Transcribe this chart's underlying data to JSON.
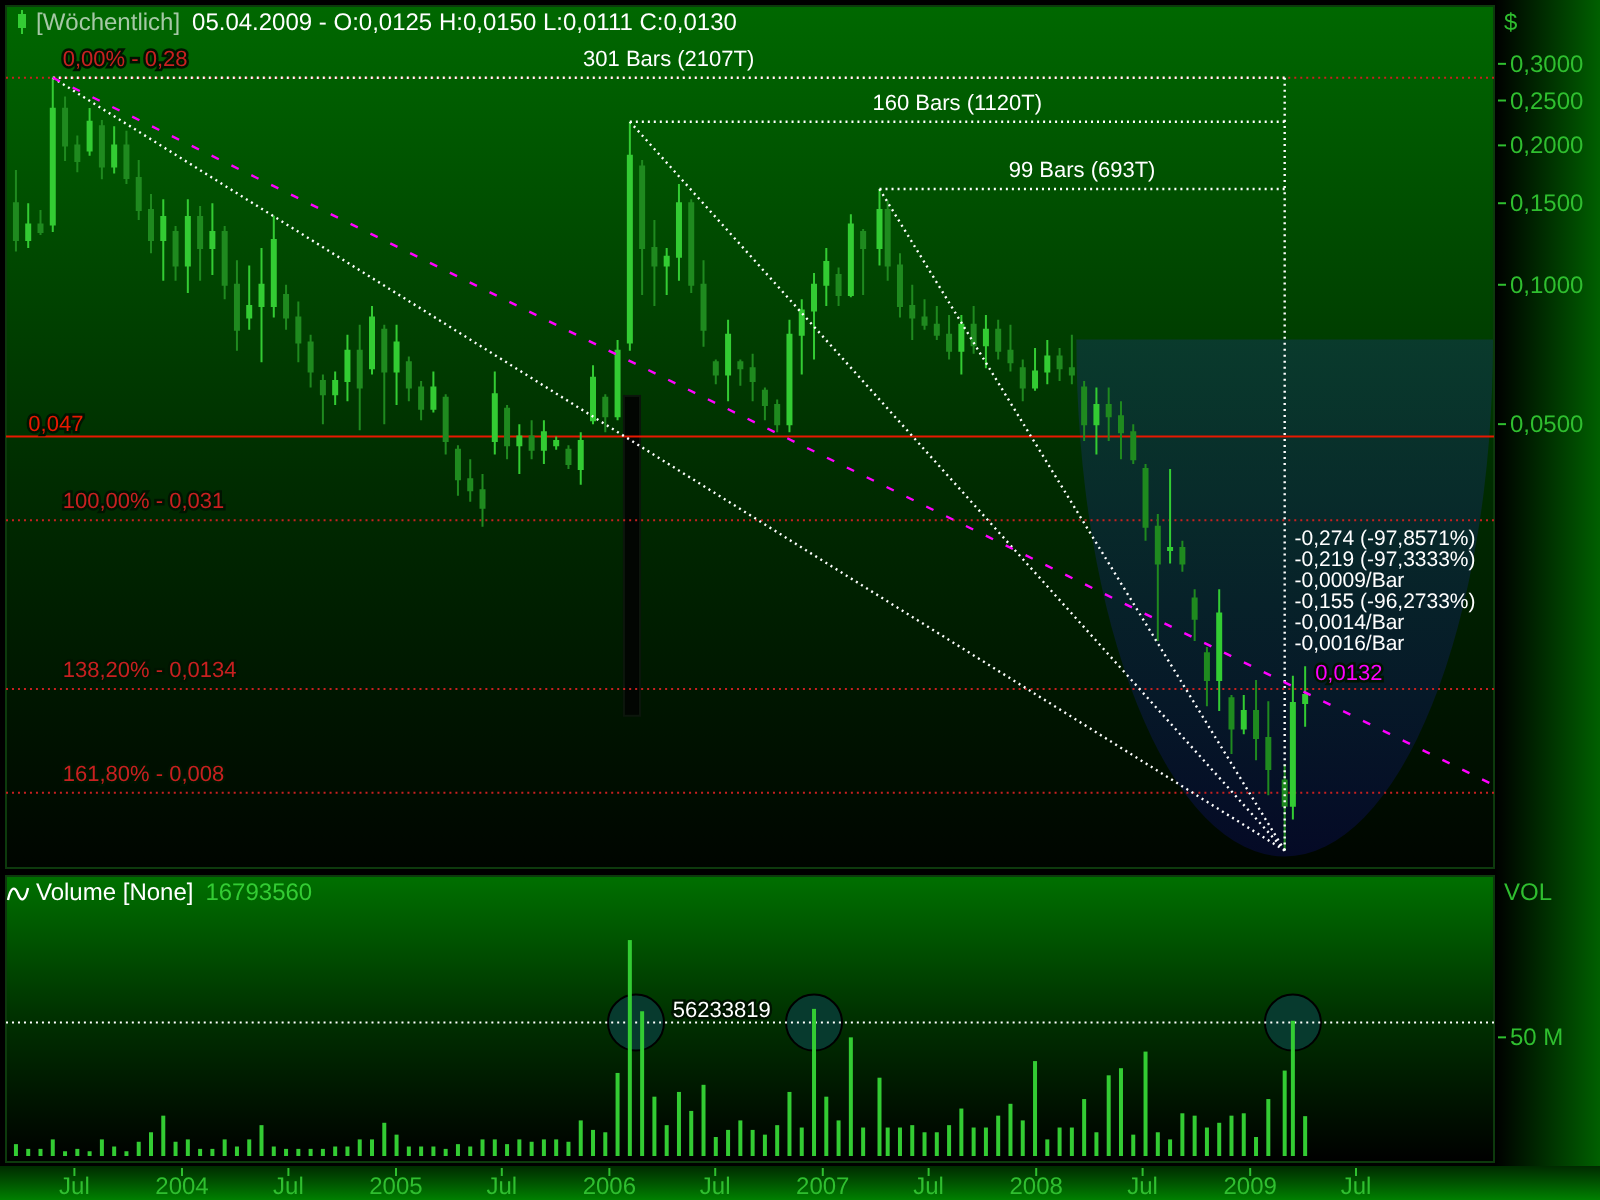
{
  "chart_data": [
    {
      "type": "candlestick",
      "title": "[Wöchentlich]",
      "subtitle": "05.04.2009 - O:0,0125 H:0,0150 L:0,0111 C:0,0130",
      "ylabel": "$",
      "x": [
        "2003-03-23",
        "2003-04-13",
        "2003-05-04",
        "2003-05-25",
        "2003-06-15",
        "2003-07-06",
        "2003-07-27",
        "2003-08-17",
        "2003-09-07",
        "2003-09-28",
        "2003-10-19",
        "2003-11-09",
        "2003-11-30",
        "2003-12-21",
        "2004-01-11",
        "2004-02-01",
        "2004-02-22",
        "2004-03-14",
        "2004-04-04",
        "2004-04-25",
        "2004-05-16",
        "2004-06-06",
        "2004-06-27",
        "2004-07-18",
        "2004-08-08",
        "2004-08-29",
        "2004-09-19",
        "2004-10-10",
        "2004-10-31",
        "2004-11-21",
        "2004-12-12",
        "2005-01-02",
        "2005-01-23",
        "2005-02-13",
        "2005-03-06",
        "2005-03-27",
        "2005-04-17",
        "2005-05-08",
        "2005-05-29",
        "2005-06-19",
        "2005-07-10",
        "2005-07-31",
        "2005-08-21",
        "2005-09-11",
        "2005-10-02",
        "2005-10-23",
        "2005-11-13",
        "2005-12-04",
        "2005-12-25",
        "2006-01-15",
        "2006-02-05",
        "2006-02-26",
        "2006-03-19",
        "2006-04-09",
        "2006-04-30",
        "2006-05-21",
        "2006-06-11",
        "2006-07-02",
        "2006-07-23",
        "2006-08-13",
        "2006-09-03",
        "2006-09-24",
        "2006-10-15",
        "2006-11-05",
        "2006-11-26",
        "2006-12-17",
        "2007-01-07",
        "2007-01-28",
        "2007-02-18",
        "2007-03-11",
        "2007-04-08",
        "2007-04-22",
        "2007-05-13",
        "2007-06-03",
        "2007-06-24",
        "2007-07-15",
        "2007-08-05",
        "2007-08-26",
        "2007-09-16",
        "2007-10-07",
        "2007-10-28",
        "2007-11-18",
        "2007-12-09",
        "2007-12-30",
        "2008-01-20",
        "2008-02-10",
        "2008-03-02",
        "2008-03-23",
        "2008-04-13",
        "2008-05-04",
        "2008-05-25",
        "2008-06-15",
        "2008-07-06",
        "2008-07-27",
        "2008-08-17",
        "2008-09-07",
        "2008-09-28",
        "2008-10-19",
        "2008-11-09",
        "2008-11-30",
        "2008-12-21",
        "2009-01-11",
        "2009-02-01",
        "2009-03-01",
        "2009-03-15",
        "2009-04-05"
      ],
      "ohlc": [
        [
          0.15,
          0.177,
          0.118,
          0.125
        ],
        [
          0.125,
          0.15,
          0.12,
          0.135
        ],
        [
          0.135,
          0.145,
          0.128,
          0.13
        ],
        [
          0.135,
          0.28,
          0.13,
          0.24
        ],
        [
          0.24,
          0.255,
          0.185,
          0.2
        ],
        [
          0.2,
          0.21,
          0.175,
          0.185
        ],
        [
          0.195,
          0.241,
          0.19,
          0.225
        ],
        [
          0.22,
          0.227,
          0.169,
          0.18
        ],
        [
          0.18,
          0.22,
          0.174,
          0.2
        ],
        [
          0.2,
          0.215,
          0.165,
          0.17
        ],
        [
          0.17,
          0.186,
          0.138,
          0.145
        ],
        [
          0.145,
          0.157,
          0.117,
          0.125
        ],
        [
          0.125,
          0.153,
          0.102,
          0.14
        ],
        [
          0.13,
          0.134,
          0.102,
          0.11
        ],
        [
          0.11,
          0.153,
          0.096,
          0.14
        ],
        [
          0.14,
          0.148,
          0.102,
          0.12
        ],
        [
          0.12,
          0.15,
          0.105,
          0.13
        ],
        [
          0.13,
          0.134,
          0.093,
          0.1
        ],
        [
          0.1,
          0.113,
          0.072,
          0.08
        ],
        [
          0.085,
          0.11,
          0.08,
          0.09
        ],
        [
          0.09,
          0.12,
          0.068,
          0.1
        ],
        [
          0.09,
          0.141,
          0.085,
          0.125
        ],
        [
          0.095,
          0.1,
          0.08,
          0.085
        ],
        [
          0.085,
          0.092,
          0.068,
          0.075
        ],
        [
          0.075,
          0.078,
          0.06,
          0.065
        ],
        [
          0.062,
          0.064,
          0.05,
          0.058
        ],
        [
          0.058,
          0.065,
          0.055,
          0.062
        ],
        [
          0.062,
          0.078,
          0.056,
          0.072
        ],
        [
          0.072,
          0.082,
          0.0485,
          0.06
        ],
        [
          0.066,
          0.09,
          0.064,
          0.085
        ],
        [
          0.08,
          0.082,
          0.05,
          0.065
        ],
        [
          0.065,
          0.082,
          0.055,
          0.075
        ],
        [
          0.068,
          0.07,
          0.056,
          0.06
        ],
        [
          0.06,
          0.062,
          0.051,
          0.054
        ],
        [
          0.054,
          0.065,
          0.053,
          0.06
        ],
        [
          0.057,
          0.058,
          0.043,
          0.046
        ],
        [
          0.044,
          0.045,
          0.035,
          0.038
        ],
        [
          0.038,
          0.042,
          0.034,
          0.036
        ],
        [
          0.036,
          0.039,
          0.03,
          0.033
        ],
        [
          0.046,
          0.065,
          0.043,
          0.058
        ],
        [
          0.054,
          0.055,
          0.042,
          0.045
        ],
        [
          0.045,
          0.05,
          0.039,
          0.047
        ],
        [
          0.047,
          0.051,
          0.042,
          0.044
        ],
        [
          0.044,
          0.051,
          0.041,
          0.048
        ],
        [
          0.045,
          0.047,
          0.044,
          0.046
        ],
        [
          0.044,
          0.045,
          0.04,
          0.041
        ],
        [
          0.04,
          0.048,
          0.037,
          0.046
        ],
        [
          0.051,
          0.067,
          0.05,
          0.063
        ],
        [
          0.057,
          0.058,
          0.048,
          0.052
        ],
        [
          0.052,
          0.076,
          0.051,
          0.072
        ],
        [
          0.075,
          0.225,
          0.072,
          0.19
        ],
        [
          0.18,
          0.186,
          0.095,
          0.12
        ],
        [
          0.12,
          0.138,
          0.09,
          0.11
        ],
        [
          0.11,
          0.12,
          0.095,
          0.115
        ],
        [
          0.115,
          0.165,
          0.102,
          0.15
        ],
        [
          0.15,
          0.153,
          0.096,
          0.1
        ],
        [
          0.1,
          0.113,
          0.0735,
          0.08
        ],
        [
          0.068,
          0.069,
          0.061,
          0.064
        ],
        [
          0.064,
          0.084,
          0.056,
          0.078
        ],
        [
          0.068,
          0.069,
          0.0605,
          0.066
        ],
        [
          0.066,
          0.071,
          0.056,
          0.062
        ],
        [
          0.059,
          0.06,
          0.051,
          0.055
        ],
        [
          0.055,
          0.0565,
          0.048,
          0.05
        ],
        [
          0.05,
          0.084,
          0.048,
          0.078
        ],
        [
          0.078,
          0.093,
          0.064,
          0.088
        ],
        [
          0.088,
          0.106,
          0.069,
          0.1
        ],
        [
          0.1,
          0.12,
          0.09,
          0.112
        ],
        [
          0.105,
          0.109,
          0.09,
          0.095
        ],
        [
          0.095,
          0.142,
          0.094,
          0.135
        ],
        [
          0.13,
          0.132,
          0.095,
          0.12
        ],
        [
          0.12,
          0.161,
          0.11,
          0.145
        ],
        [
          0.145,
          0.152,
          0.102,
          0.11
        ],
        [
          0.11,
          0.117,
          0.085,
          0.09
        ],
        [
          0.09,
          0.1,
          0.076,
          0.085
        ],
        [
          0.085,
          0.093,
          0.08,
          0.082
        ],
        [
          0.082,
          0.09,
          0.076,
          0.078
        ],
        [
          0.078,
          0.086,
          0.069,
          0.072
        ],
        [
          0.072,
          0.086,
          0.064,
          0.082
        ],
        [
          0.082,
          0.09,
          0.071,
          0.074
        ],
        [
          0.074,
          0.086,
          0.066,
          0.08
        ],
        [
          0.08,
          0.084,
          0.069,
          0.072
        ],
        [
          0.072,
          0.082,
          0.065,
          0.068
        ],
        [
          0.066,
          0.069,
          0.056,
          0.06
        ],
        [
          0.06,
          0.073,
          0.059,
          0.065
        ],
        [
          0.065,
          0.076,
          0.061,
          0.07
        ],
        [
          0.07,
          0.073,
          0.062,
          0.066
        ],
        [
          0.066,
          0.078,
          0.061,
          0.064
        ],
        [
          0.06,
          0.062,
          0.046,
          0.05
        ],
        [
          0.05,
          0.06,
          0.043,
          0.055
        ],
        [
          0.055,
          0.06,
          0.046,
          0.052
        ],
        [
          0.052,
          0.056,
          0.042,
          0.048
        ],
        [
          0.048,
          0.05,
          0.041,
          0.042
        ],
        [
          0.04,
          0.041,
          0.028,
          0.03
        ],
        [
          0.03,
          0.032,
          0.017,
          0.025
        ],
        [
          0.027,
          0.04,
          0.025,
          0.027
        ],
        [
          0.027,
          0.028,
          0.024,
          0.025
        ],
        [
          0.021,
          0.022,
          0.017,
          0.019
        ],
        [
          0.016,
          0.0165,
          0.0123,
          0.014
        ],
        [
          0.014,
          0.022,
          0.012,
          0.0195
        ],
        [
          0.0128,
          0.013,
          0.0097,
          0.011
        ],
        [
          0.011,
          0.013,
          0.0107,
          0.012
        ],
        [
          0.012,
          0.014,
          0.0094,
          0.0105
        ],
        [
          0.0105,
          0.0126,
          0.0079,
          0.009
        ],
        [
          0.0085,
          0.0092,
          0.006,
          0.0075
        ],
        [
          0.0075,
          0.0143,
          0.007,
          0.0125
        ],
        [
          0.0125,
          0.015,
          0.0111,
          0.013
        ]
      ],
      "colors": [
        "#1f8a1f",
        "#33cc33",
        "#1f8a1f",
        "#33cc33",
        "#1f8a1f",
        "#1f8a1f",
        "#33cc33",
        "#1f8a1f",
        "#33cc33",
        "#1f8a1f",
        "#1f8a1f",
        "#1f8a1f",
        "#33cc33",
        "#1f8a1f",
        "#33cc33",
        "#1f8a1f",
        "#33cc33",
        "#1f8a1f",
        "#1f8a1f",
        "#33cc33",
        "#33cc33",
        "#33cc33",
        "#1f8a1f",
        "#1f8a1f",
        "#1f8a1f",
        "#1f8a1f",
        "#33cc33",
        "#33cc33",
        "#1f8a1f",
        "#33cc33",
        "#1f8a1f",
        "#33cc33",
        "#1f8a1f",
        "#1f8a1f",
        "#33cc33",
        "#1f8a1f",
        "#1f8a1f",
        "#1f8a1f",
        "#1f8a1f",
        "#33cc33",
        "#1f8a1f",
        "#33cc33",
        "#1f8a1f",
        "#33cc33",
        "#33cc33",
        "#1f8a1f",
        "#33cc33",
        "#33cc33",
        "#1f8a1f",
        "#33cc33",
        "#33cc33",
        "#1f8a1f",
        "#1f8a1f",
        "#33cc33",
        "#33cc33",
        "#1f8a1f",
        "#1f8a1f",
        "#1f8a1f",
        "#33cc33",
        "#1f8a1f",
        "#1f8a1f",
        "#1f8a1f",
        "#1f8a1f",
        "#33cc33",
        "#33cc33",
        "#33cc33",
        "#33cc33",
        "#1f8a1f",
        "#33cc33",
        "#1f8a1f",
        "#33cc33",
        "#1f8a1f",
        "#1f8a1f",
        "#1f8a1f",
        "#1f8a1f",
        "#1f8a1f",
        "#1f8a1f",
        "#33cc33",
        "#1f8a1f",
        "#33cc33",
        "#1f8a1f",
        "#1f8a1f",
        "#1f8a1f",
        "#33cc33",
        "#33cc33",
        "#1f8a1f",
        "#1f8a1f",
        "#1f8a1f",
        "#33cc33",
        "#1f8a1f",
        "#1f8a1f",
        "#1f8a1f",
        "#1f8a1f",
        "#1f8a1f",
        "#33cc33",
        "#1f8a1f",
        "#1f8a1f",
        "#1f8a1f",
        "#33cc33",
        "#1f8a1f",
        "#33cc33",
        "#1f8a1f",
        "#1f8a1f",
        "#1f8a1f",
        "#33cc33",
        "#33cc33"
      ],
      "series": [
        {
          "type": "line",
          "name": "301 Bars (2107T)",
          "x": [
            "2003-05-25",
            "2009-03-01"
          ],
          "values": [
            0.28,
            0.28
          ],
          "color": "#ffffff",
          "line_style": "dotted"
        },
        {
          "type": "line",
          "name": "160 Bars (1120T)",
          "x": [
            "2006-02-05",
            "2009-03-01"
          ],
          "values": [
            0.225,
            0.225
          ],
          "color": "#ffffff",
          "line_style": "dotted"
        },
        {
          "type": "line",
          "name": "99 Bars (693T)",
          "x": [
            "2007-04-08",
            "2009-03-01"
          ],
          "values": [
            0.161,
            0.161
          ],
          "color": "#ffffff",
          "line_style": "dotted"
        },
        {
          "type": "line",
          "x": [
            "2009-03-01",
            "2009-03-01"
          ],
          "values": [
            0.28,
            0.006
          ],
          "color": "#ffffff",
          "line_style": "dotted"
        },
        {
          "type": "line",
          "x": [
            "2003-05-25",
            "2009-03-01"
          ],
          "values": [
            0.28,
            0.006
          ],
          "color": "#ffffff",
          "line_style": "dotted"
        },
        {
          "type": "line",
          "x": [
            "2006-02-05",
            "2009-03-01"
          ],
          "values": [
            0.225,
            0.006
          ],
          "color": "#ffffff",
          "line_style": "dotted"
        },
        {
          "type": "line",
          "x": [
            "2007-04-08",
            "2009-03-01"
          ],
          "values": [
            0.161,
            0.006
          ],
          "color": "#ffffff",
          "line_style": "dotted"
        },
        {
          "type": "line",
          "x": [
            "2003-05-25",
            "2010-02-14"
          ],
          "values": [
            0.28,
            0.0084
          ],
          "color": "#ff00ff",
          "line_style": "dashed"
        }
      ],
      "xlim": [
        "2003-03-06",
        "2010-02-22"
      ],
      "ylim": [
        0.0055,
        0.4
      ],
      "yticks": [
        {
          "value": 0.3,
          "label": "0,3000"
        },
        {
          "value": 0.25,
          "label": "0,2500"
        },
        {
          "value": 0.2,
          "label": "0,2000"
        },
        {
          "value": 0.15,
          "label": "0,1500"
        },
        {
          "value": 0.1,
          "label": "0,1000"
        },
        {
          "value": 0.05,
          "label": "0,0500"
        }
      ],
      "log": "y",
      "tick_labels": "y",
      "ref_lines": [
        {
          "axis": "y",
          "value": 0.28,
          "color": "#c82020",
          "line_style": "dotted"
        },
        {
          "axis": "y",
          "value": 0.047,
          "label": "0,047",
          "color": "#e81800",
          "line_style": "solid"
        },
        {
          "axis": "y",
          "value": 0.031,
          "color": "#c82020",
          "line_style": "dotted"
        },
        {
          "axis": "y",
          "value": 0.0134,
          "color": "#c82020",
          "line_style": "dotted"
        },
        {
          "axis": "y",
          "value": 0.008,
          "color": "#c82020",
          "line_style": "dotted"
        }
      ],
      "annotations": [
        {
          "text": "0,00% - 0,28",
          "x": "2003-05-25",
          "y": 0.28
        },
        {
          "text": "100,00% - 0,031",
          "x": "2003-05-25",
          "y": 0.031
        },
        {
          "text": "138,20% - 0,0134",
          "x": "2003-05-25",
          "y": 0.0134
        },
        {
          "text": "161,80% - 0,008",
          "x": "2003-05-25",
          "y": 0.008
        },
        {
          "text": "0,0132",
          "x": "2009-04-05",
          "y": 0.0132
        },
        "-0,274 (-97,8571%)",
        "-0,219 (-97,3333%)",
        "-0,0009/Bar",
        "-0,155 (-96,2733%)",
        "-0,0014/Bar",
        "-0,0016/Bar"
      ]
    },
    {
      "type": "bar",
      "title": "Volume [None]",
      "subtitle": "16793560",
      "ylabel": "VOL",
      "color": "#33cc33",
      "x": [
        "2003-03-23",
        "2003-04-13",
        "2003-05-04",
        "2003-05-25",
        "2003-06-15",
        "2003-07-06",
        "2003-07-27",
        "2003-08-17",
        "2003-09-07",
        "2003-09-28",
        "2003-10-19",
        "2003-11-09",
        "2003-11-30",
        "2003-12-21",
        "2004-01-11",
        "2004-02-01",
        "2004-02-22",
        "2004-03-14",
        "2004-04-04",
        "2004-04-25",
        "2004-05-16",
        "2004-06-06",
        "2004-06-27",
        "2004-07-18",
        "2004-08-08",
        "2004-08-29",
        "2004-09-19",
        "2004-10-10",
        "2004-10-31",
        "2004-11-21",
        "2004-12-12",
        "2005-01-02",
        "2005-01-23",
        "2005-02-13",
        "2005-03-06",
        "2005-03-27",
        "2005-04-17",
        "2005-05-08",
        "2005-05-29",
        "2005-06-19",
        "2005-07-10",
        "2005-07-31",
        "2005-08-21",
        "2005-09-11",
        "2005-10-02",
        "2005-10-23",
        "2005-11-13",
        "2005-12-04",
        "2005-12-25",
        "2006-01-15",
        "2006-02-05",
        "2006-02-26",
        "2006-03-19",
        "2006-04-09",
        "2006-04-30",
        "2006-05-21",
        "2006-06-11",
        "2006-07-02",
        "2006-07-23",
        "2006-08-13",
        "2006-09-03",
        "2006-09-24",
        "2006-10-15",
        "2006-11-05",
        "2006-11-26",
        "2006-12-17",
        "2007-01-07",
        "2007-01-28",
        "2007-02-18",
        "2007-03-11",
        "2007-04-08",
        "2007-04-22",
        "2007-05-13",
        "2007-06-03",
        "2007-06-24",
        "2007-07-15",
        "2007-08-05",
        "2007-08-26",
        "2007-09-16",
        "2007-10-07",
        "2007-10-28",
        "2007-11-18",
        "2007-12-09",
        "2007-12-30",
        "2008-01-20",
        "2008-02-10",
        "2008-03-02",
        "2008-03-23",
        "2008-04-13",
        "2008-05-04",
        "2008-05-25",
        "2008-06-15",
        "2008-07-06",
        "2008-07-27",
        "2008-08-17",
        "2008-09-07",
        "2008-09-28",
        "2008-10-19",
        "2008-11-09",
        "2008-11-30",
        "2008-12-21",
        "2009-01-11",
        "2009-02-01",
        "2009-03-01",
        "2009-03-15",
        "2009-04-05"
      ],
      "values": [
        5000000,
        3000000,
        3000000,
        7000000,
        2000000,
        3000000,
        2000000,
        7000000,
        4000000,
        2000000,
        6000000,
        10000000,
        17000000,
        6000000,
        7000000,
        3000000,
        3000000,
        7000000,
        4000000,
        7000000,
        13000000,
        4000000,
        3000000,
        3000000,
        3000000,
        3000000,
        4000000,
        4000000,
        7000000,
        7000000,
        14000000,
        9000000,
        4000000,
        4000000,
        4000000,
        3000000,
        5000000,
        4000000,
        7000000,
        7000000,
        5000000,
        7000000,
        6000000,
        7000000,
        7000000,
        6000000,
        15000000,
        11000000,
        10000000,
        35000000,
        91000000,
        61000000,
        25000000,
        13000000,
        27000000,
        19000000,
        30000000,
        8000000,
        11000000,
        15000000,
        11000000,
        9000000,
        13000000,
        27000000,
        12000000,
        62000000,
        25000000,
        15000000,
        50000000,
        12000000,
        33000000,
        12000000,
        12000000,
        13000000,
        10000000,
        10000000,
        13000000,
        20000000,
        12000000,
        12000000,
        17000000,
        22000000,
        15000000,
        40000000,
        7000000,
        12000000,
        12000000,
        24000000,
        10000000,
        34000000,
        37000000,
        9000000,
        44000000,
        10000000,
        7000000,
        18000000,
        17000000,
        12000000,
        14000000,
        17000000,
        18000000,
        8000000,
        24000000,
        36000000,
        57000000,
        16793560
      ],
      "xlim": [
        "2003-03-06",
        "2010-02-22"
      ],
      "xticks": [
        {
          "value": "2003-07-01",
          "label": "Jul"
        },
        {
          "value": "2004-01-01",
          "label": "2004"
        },
        {
          "value": "2004-07-01",
          "label": "Jul"
        },
        {
          "value": "2005-01-01",
          "label": "2005"
        },
        {
          "value": "2005-07-01",
          "label": "Jul"
        },
        {
          "value": "2006-01-01",
          "label": "2006"
        },
        {
          "value": "2006-07-01",
          "label": "Jul"
        },
        {
          "value": "2007-01-01",
          "label": "2007"
        },
        {
          "value": "2007-07-01",
          "label": "Jul"
        },
        {
          "value": "2008-01-01",
          "label": "2008"
        },
        {
          "value": "2008-07-01",
          "label": "Jul"
        },
        {
          "value": "2009-01-01",
          "label": "2009"
        },
        {
          "value": "2009-07-01",
          "label": "Jul"
        }
      ],
      "ylim": [
        0,
        118000000
      ],
      "yticks": [
        {
          "value": 50000000,
          "label": "50 M"
        }
      ],
      "ref_lines": [
        {
          "axis": "y",
          "value": 56233819,
          "label": "56233819",
          "color": "#ffffff",
          "line_style": "dotted"
        }
      ]
    }
  ]
}
